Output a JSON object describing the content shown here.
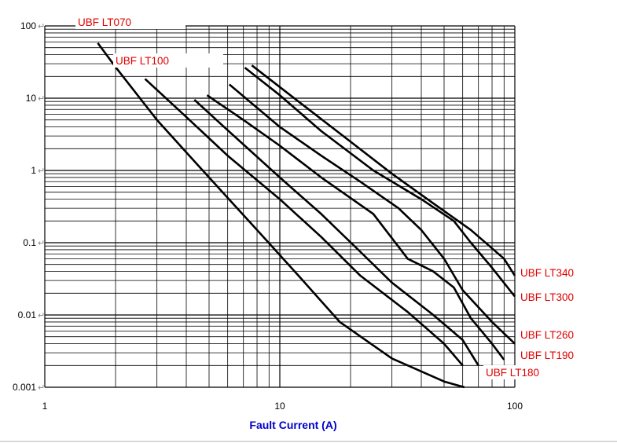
{
  "chart_data": {
    "type": "line",
    "title": "",
    "xlabel": "Fault Current (A)",
    "ylabel": "",
    "xscale": "log",
    "yscale": "log",
    "xlim": [
      1,
      100
    ],
    "ylim": [
      0.001,
      100
    ],
    "grid": true,
    "x_ticks": [
      "1",
      "10",
      "100"
    ],
    "y_ticks": [
      "100",
      "10",
      "1",
      "0.1",
      "0.01",
      "0.001"
    ],
    "line_color": "#000000",
    "label_color": "#e00000",
    "xlabel_color": "#0000cc",
    "series": [
      {
        "name": "UBF   LT070",
        "points": [
          [
            1.68,
            58
          ],
          [
            2,
            27
          ],
          [
            3,
            5
          ],
          [
            5,
            0.8
          ],
          [
            8,
            0.15
          ],
          [
            12,
            0.035
          ],
          [
            18,
            0.008
          ],
          [
            30,
            0.0025
          ],
          [
            50,
            0.0012
          ],
          [
            61,
            0.001
          ]
        ]
      },
      {
        "name": "UBF   LT100",
        "points": [
          [
            2.67,
            18.5
          ],
          [
            4,
            5.5
          ],
          [
            6,
            1.6
          ],
          [
            10,
            0.4
          ],
          [
            15,
            0.12
          ],
          [
            22,
            0.035
          ],
          [
            35,
            0.011
          ],
          [
            50,
            0.004
          ],
          [
            60,
            0.002
          ]
        ]
      },
      {
        "name": "UBF   LT180",
        "points": [
          [
            4.33,
            9.5
          ],
          [
            6,
            3.6
          ],
          [
            10,
            0.8
          ],
          [
            15,
            0.25
          ],
          [
            22,
            0.075
          ],
          [
            30,
            0.028
          ],
          [
            45,
            0.01
          ],
          [
            60,
            0.0045
          ],
          [
            70,
            0.002
          ]
        ]
      },
      {
        "name": "UBF   LT190",
        "points": [
          [
            4.9,
            11
          ],
          [
            7,
            5
          ],
          [
            10,
            2.2
          ],
          [
            15,
            0.8
          ],
          [
            25,
            0.25
          ],
          [
            35,
            0.06
          ],
          [
            45,
            0.04
          ],
          [
            55,
            0.024
          ],
          [
            65,
            0.009
          ],
          [
            80,
            0.004
          ],
          [
            90,
            0.0024
          ]
        ]
      },
      {
        "name": "UBF   LT260",
        "points": [
          [
            6.1,
            15.5
          ],
          [
            10,
            4
          ],
          [
            15,
            1.6
          ],
          [
            22,
            0.7
          ],
          [
            32,
            0.3
          ],
          [
            40,
            0.15
          ],
          [
            50,
            0.06
          ],
          [
            60,
            0.022
          ],
          [
            80,
            0.008
          ],
          [
            100,
            0.004
          ]
        ]
      },
      {
        "name": "UBF   LT300",
        "points": [
          [
            7.1,
            26.5
          ],
          [
            10,
            11
          ],
          [
            15,
            3.5
          ],
          [
            25,
            1
          ],
          [
            40,
            0.4
          ],
          [
            55,
            0.2
          ],
          [
            65,
            0.1
          ],
          [
            80,
            0.045
          ],
          [
            100,
            0.018
          ]
        ]
      },
      {
        "name": "UBF   LT340",
        "points": [
          [
            7.6,
            28.5
          ],
          [
            12,
            9
          ],
          [
            20,
            2.5
          ],
          [
            30,
            0.9
          ],
          [
            45,
            0.35
          ],
          [
            65,
            0.15
          ],
          [
            90,
            0.06
          ],
          [
            100,
            0.035
          ]
        ]
      }
    ]
  }
}
